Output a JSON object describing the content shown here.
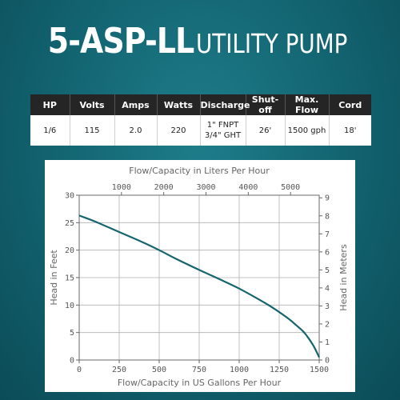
{
  "title": {
    "model": "5-ASP-LL",
    "kind": "UTILITY PUMP"
  },
  "spec_table": {
    "headers": [
      "HP",
      "Volts",
      "Amps",
      "Watts",
      "Discharge",
      "Shut-off",
      "Max. Flow",
      "Cord"
    ],
    "row": {
      "hp": "1/6",
      "volts": "115",
      "amps": "2.0",
      "watts": "220",
      "discharge_line1": "1\" FNPT",
      "discharge_line2": "3/4\" GHT",
      "shutoff": "26'",
      "max_flow": "1500 gph",
      "cord": "18'"
    }
  },
  "chart_data": {
    "type": "line",
    "xlabel": "Flow/Capacity in US Gallons Per Hour",
    "ylabel": "Head in Feet",
    "x2label": "Flow/Capacity in Liters Per Hour",
    "y2label": "Head in Meters",
    "xlim": [
      0,
      1500
    ],
    "ylim": [
      0,
      30
    ],
    "x2lim": [
      0,
      5678
    ],
    "y2lim": [
      0,
      9.144
    ],
    "xticks": [
      0,
      250,
      500,
      750,
      1000,
      1250,
      1500
    ],
    "yticks": [
      0,
      5,
      10,
      15,
      20,
      25,
      30
    ],
    "x2ticks": [
      1000,
      2000,
      3000,
      4000,
      5000
    ],
    "y2ticks": [
      0,
      1,
      2,
      3,
      4,
      5,
      6,
      7,
      8,
      9
    ],
    "grid": true,
    "line_color": "#15656e",
    "series": [
      {
        "x": [
          0,
          100,
          250,
          400,
          500,
          600,
          750,
          900,
          1000,
          1100,
          1200,
          1300,
          1350,
          1400,
          1430,
          1460,
          1480,
          1500
        ],
        "y": [
          26.3,
          25.2,
          23.3,
          21.4,
          20.0,
          18.5,
          16.4,
          14.4,
          13.0,
          11.4,
          9.7,
          7.7,
          6.5,
          5.2,
          4.1,
          2.8,
          1.7,
          0.5
        ]
      }
    ]
  }
}
